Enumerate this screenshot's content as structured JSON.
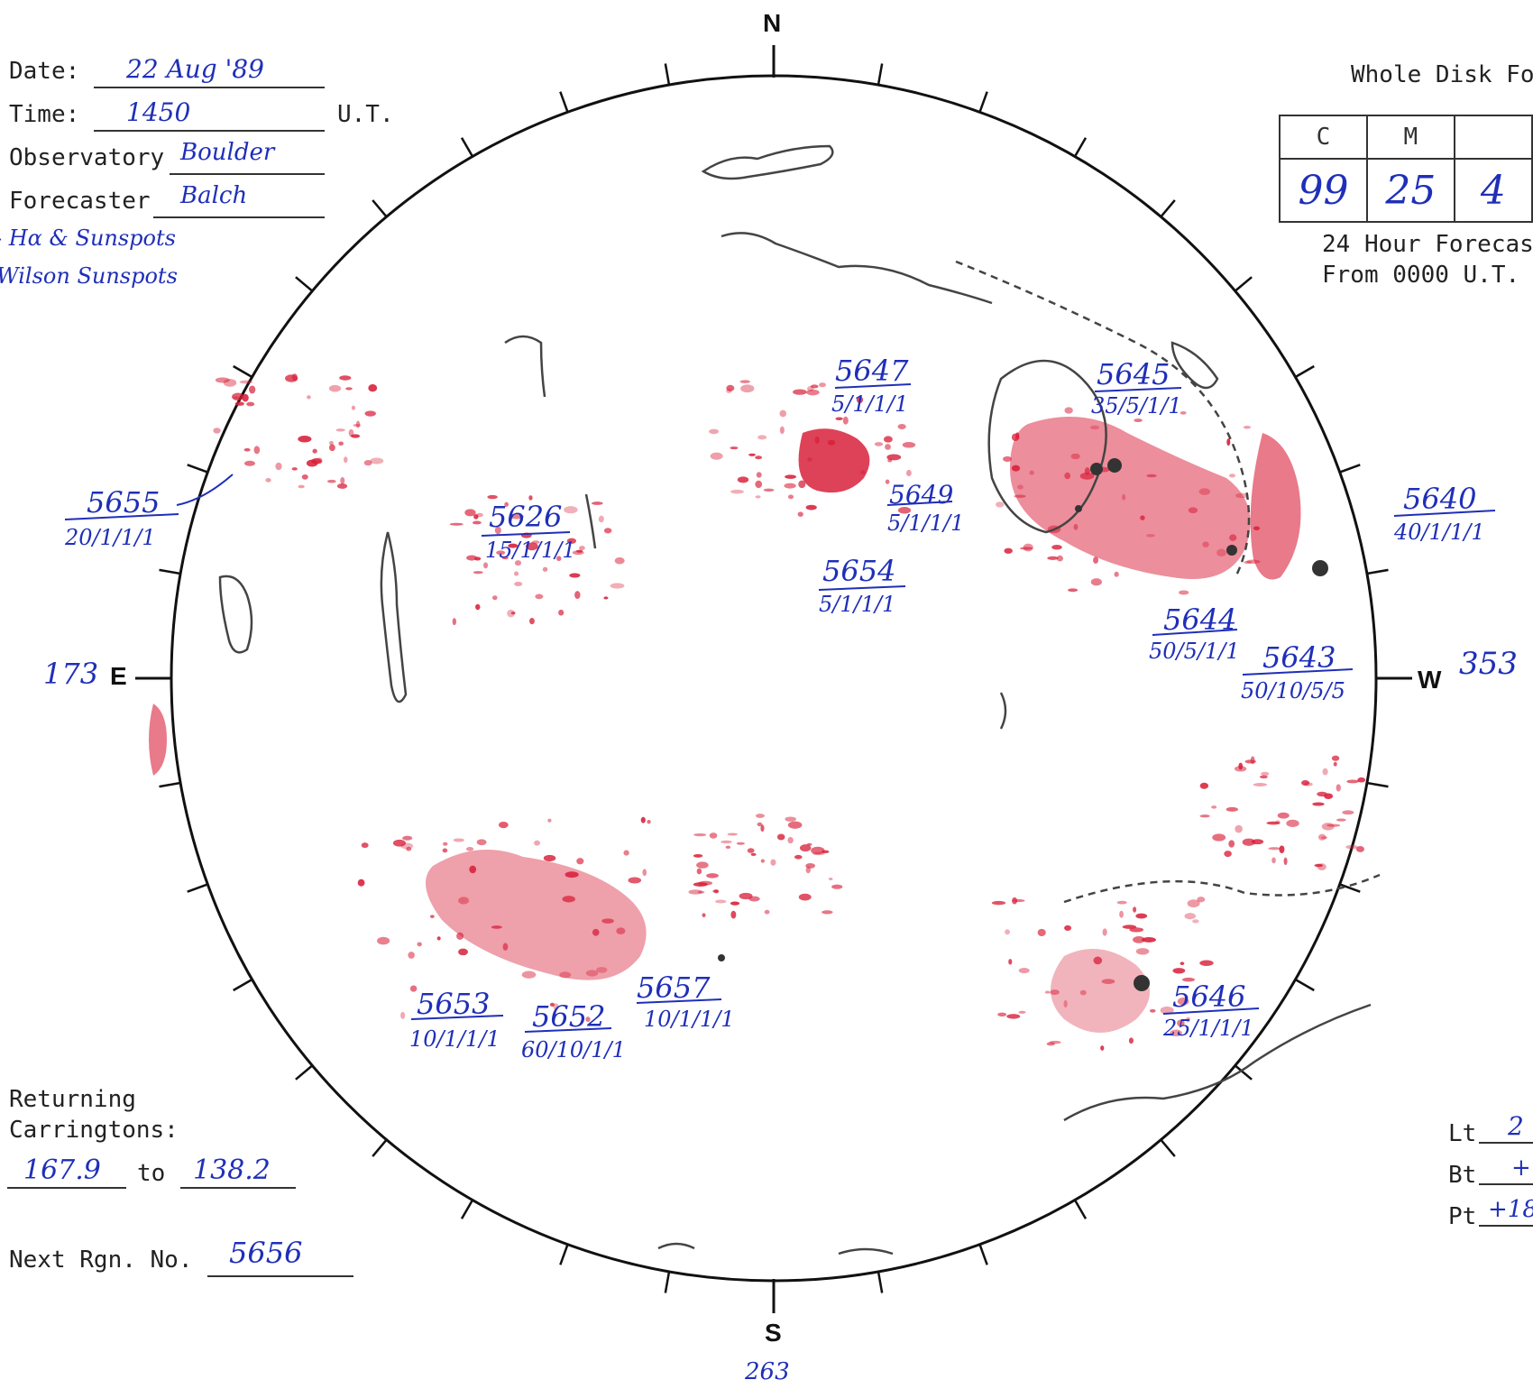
{
  "header": {
    "date_label": "Date:",
    "date_value": "22 Aug '89",
    "time_label": "Time:",
    "time_value": "1450",
    "time_unit": "U.T.",
    "observatory_label": "Observatory",
    "observatory_value": "Boulder",
    "forecaster_label": "Forecaster",
    "forecaster_value": "Balch",
    "note_line1": "- Hα & Sunspots",
    "note_line2": "Wilson Sunspots"
  },
  "forecast": {
    "title": "Whole Disk Fo",
    "columns": [
      "C",
      "M",
      ""
    ],
    "values": [
      "99",
      "25",
      "4"
    ],
    "caption_line1": "24 Hour Forecas",
    "caption_line2": "From 0000 U.T."
  },
  "compass": {
    "north": "N",
    "south": "S",
    "east": "E",
    "west": "W",
    "east_longitude": "173",
    "west_longitude": "353",
    "south_longitude": "263"
  },
  "regions": [
    {
      "number": "5655",
      "detail": "20/1/1/1"
    },
    {
      "number": "5626",
      "detail": "15/1/1/1"
    },
    {
      "number": "5647",
      "detail": "5/1/1/1"
    },
    {
      "number": "5645",
      "detail": "35/5/1/1"
    },
    {
      "number": "5649",
      "detail": "5/1/1/1"
    },
    {
      "number": "5654",
      "detail": "5/1/1/1"
    },
    {
      "number": "5640",
      "detail": "40/1/1/1"
    },
    {
      "number": "5644",
      "detail": "50/5/1/1"
    },
    {
      "number": "5643",
      "detail": "50/10/5/5"
    },
    {
      "number": "5653",
      "detail": "10/1/1/1"
    },
    {
      "number": "5652",
      "detail": "60/10/1/1"
    },
    {
      "number": "5657",
      "detail": "10/1/1/1"
    },
    {
      "number": "5646",
      "detail": "25/1/1/1"
    }
  ],
  "returning": {
    "label_line1": "Returning",
    "label_line2": "Carringtons:",
    "from": "167.9",
    "to_label": "to",
    "to": "138.2"
  },
  "next_region": {
    "label": "Next Rgn. No.",
    "value": "5656"
  },
  "orientation": {
    "lt_label": "Lt",
    "lt_value": "2",
    "bt_label": "Bt",
    "bt_value": "+",
    "pt_label": "Pt",
    "pt_value": "+18"
  },
  "colors": {
    "plage": "#d8203a",
    "ink": "#1f2fb8",
    "pencil": "#444444"
  }
}
